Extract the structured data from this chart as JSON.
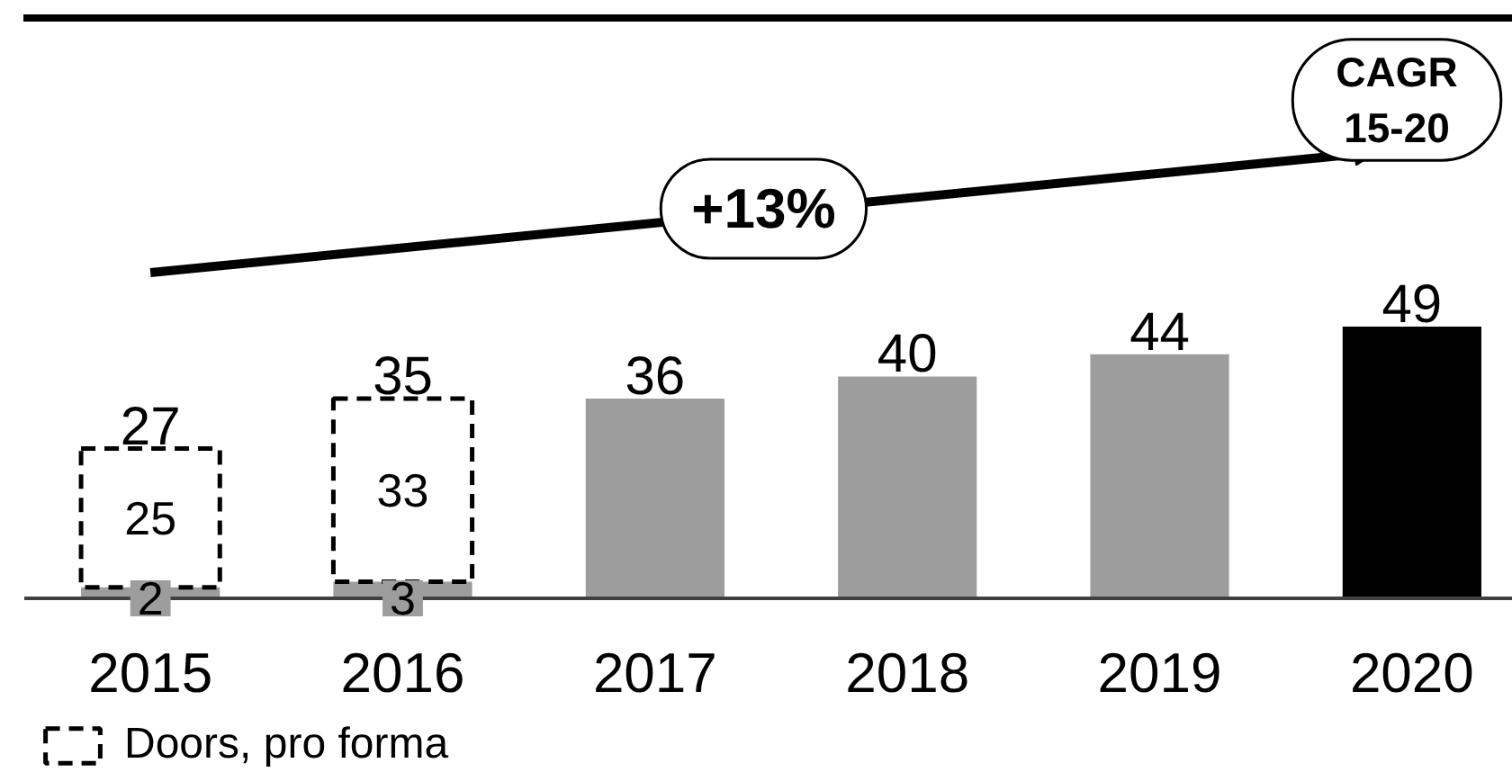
{
  "chart_data": {
    "type": "bar",
    "categories": [
      "2015",
      "2016",
      "2017",
      "2018",
      "2019",
      "2020"
    ],
    "stacked": true,
    "series": [
      {
        "colors": [
          "#9d9d9d",
          "#9d9d9d",
          "#9d9d9d",
          "#9d9d9d",
          "#9d9d9d",
          "#000000"
        ],
        "values": [
          2,
          3,
          36,
          40,
          44,
          49
        ],
        "value_labels": [
          "2",
          "3",
          null,
          null,
          null,
          null
        ]
      },
      {
        "name": "Doors, pro forma",
        "color": "#000000",
        "line_style": "dashed",
        "values": [
          25,
          33,
          null,
          null,
          null,
          null
        ],
        "value_labels": [
          "25",
          "33",
          null,
          null,
          null,
          null
        ]
      }
    ],
    "totals": [
      "27",
      "35",
      "36",
      "40",
      "44",
      "49"
    ],
    "annotations": [
      "+13%",
      "CAGR 15-20"
    ],
    "tick_labels": "x",
    "legend": "bottom left",
    "grid": false
  }
}
